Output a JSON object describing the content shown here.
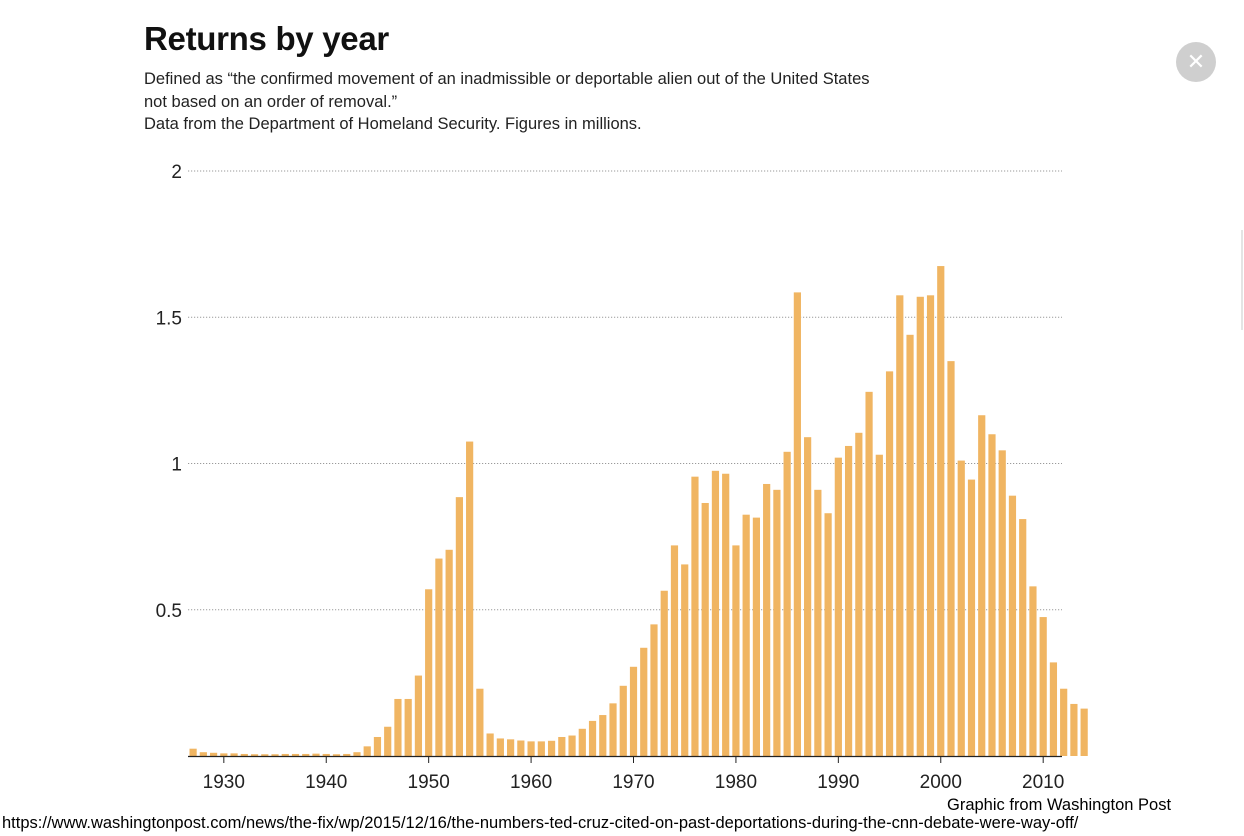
{
  "close_icon": "close-icon",
  "credit": "Graphic from Washington Post",
  "source_url": "https://www.washingtonpost.com/news/the-fix/wp/2015/12/16/the-numbers-ted-cruz-cited-on-past-deportations-during-the-cnn-debate-were-way-off/",
  "colors": {
    "bar": "#f0b562",
    "grid": "#9a9a9a",
    "close_button": "#cfcfcf"
  },
  "chart_data": {
    "type": "bar",
    "title": "Returns by year",
    "subtitle": [
      "Defined as “the confirmed movement of an inadmissible or deportable alien out of the United States",
      "not based on an order of removal.”",
      "Data from the Department of Homeland Security. Figures in millions."
    ],
    "xlabel": "",
    "ylabel": "",
    "ylim": [
      0,
      2
    ],
    "grid": true,
    "y_ticks": [
      0.5,
      1,
      1.5,
      2
    ],
    "y_tick_labels": [
      "0.5",
      "1",
      "1.5",
      "2"
    ],
    "x_ticks": [
      1930,
      1940,
      1950,
      1960,
      1970,
      1980,
      1990,
      2000,
      2010
    ],
    "x_tick_labels": [
      "1930",
      "1940",
      "1950",
      "1960",
      "1970",
      "1980",
      "1990",
      "2000",
      "2010"
    ],
    "x": [
      1927,
      1928,
      1929,
      1930,
      1931,
      1932,
      1933,
      1934,
      1935,
      1936,
      1937,
      1938,
      1939,
      1940,
      1941,
      1942,
      1943,
      1944,
      1945,
      1946,
      1947,
      1948,
      1949,
      1950,
      1951,
      1952,
      1953,
      1954,
      1955,
      1956,
      1957,
      1958,
      1959,
      1960,
      1961,
      1962,
      1963,
      1964,
      1965,
      1966,
      1967,
      1968,
      1969,
      1970,
      1971,
      1972,
      1973,
      1974,
      1975,
      1976,
      1977,
      1978,
      1979,
      1980,
      1981,
      1982,
      1983,
      1984,
      1985,
      1986,
      1987,
      1988,
      1989,
      1990,
      1991,
      1992,
      1993,
      1994,
      1995,
      1996,
      1997,
      1998,
      1999,
      2000,
      2001,
      2002,
      2003,
      2004,
      2005,
      2006,
      2007,
      2008,
      2009,
      2010,
      2011,
      2012,
      2013,
      2014
    ],
    "values": [
      0.025,
      0.013,
      0.011,
      0.009,
      0.009,
      0.007,
      0.006,
      0.006,
      0.006,
      0.007,
      0.007,
      0.007,
      0.008,
      0.007,
      0.006,
      0.007,
      0.013,
      0.033,
      0.065,
      0.1,
      0.195,
      0.195,
      0.275,
      0.57,
      0.675,
      0.705,
      0.885,
      1.075,
      0.23,
      0.077,
      0.06,
      0.057,
      0.053,
      0.05,
      0.05,
      0.052,
      0.065,
      0.07,
      0.093,
      0.12,
      0.14,
      0.18,
      0.24,
      0.305,
      0.37,
      0.45,
      0.565,
      0.72,
      0.655,
      0.955,
      0.865,
      0.975,
      0.965,
      0.72,
      0.825,
      0.815,
      0.93,
      0.91,
      1.04,
      1.585,
      1.09,
      0.91,
      0.83,
      1.02,
      1.06,
      1.105,
      1.245,
      1.03,
      1.315,
      1.575,
      1.44,
      1.57,
      1.575,
      1.675,
      1.35,
      1.01,
      0.945,
      1.165,
      1.1,
      1.045,
      0.89,
      0.81,
      0.58,
      0.475,
      0.32,
      0.23,
      0.178,
      0.162
    ]
  }
}
